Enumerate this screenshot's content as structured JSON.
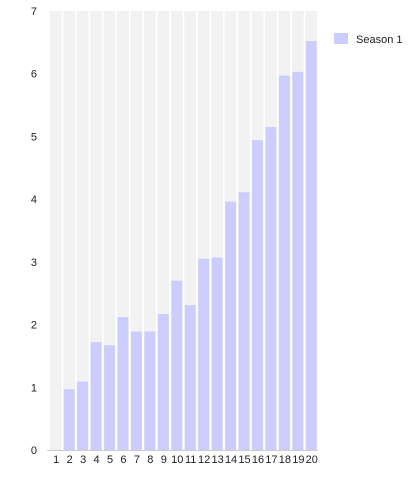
{
  "chart_data": {
    "type": "bar",
    "categories": [
      "1",
      "2",
      "3",
      "4",
      "5",
      "6",
      "7",
      "8",
      "9",
      "10",
      "11",
      "12",
      "13",
      "14",
      "15",
      "16",
      "17",
      "18",
      "19",
      "20"
    ],
    "series": [
      {
        "name": "Season 1",
        "values": [
          0,
          0.97,
          1.09,
          1.72,
          1.67,
          2.12,
          1.89,
          1.89,
          2.17,
          2.7,
          2.31,
          3.05,
          3.07,
          3.96,
          4.11,
          4.94,
          5.15,
          5.97,
          6.03,
          6.52
        ],
        "color": "#ccccff"
      }
    ],
    "ylim": [
      0,
      7
    ],
    "yticks": [
      "0",
      "1",
      "2",
      "3",
      "4",
      "5",
      "6",
      "7"
    ],
    "background_band_color": "#f2f2f2",
    "legend": {
      "position": "top-right"
    }
  }
}
